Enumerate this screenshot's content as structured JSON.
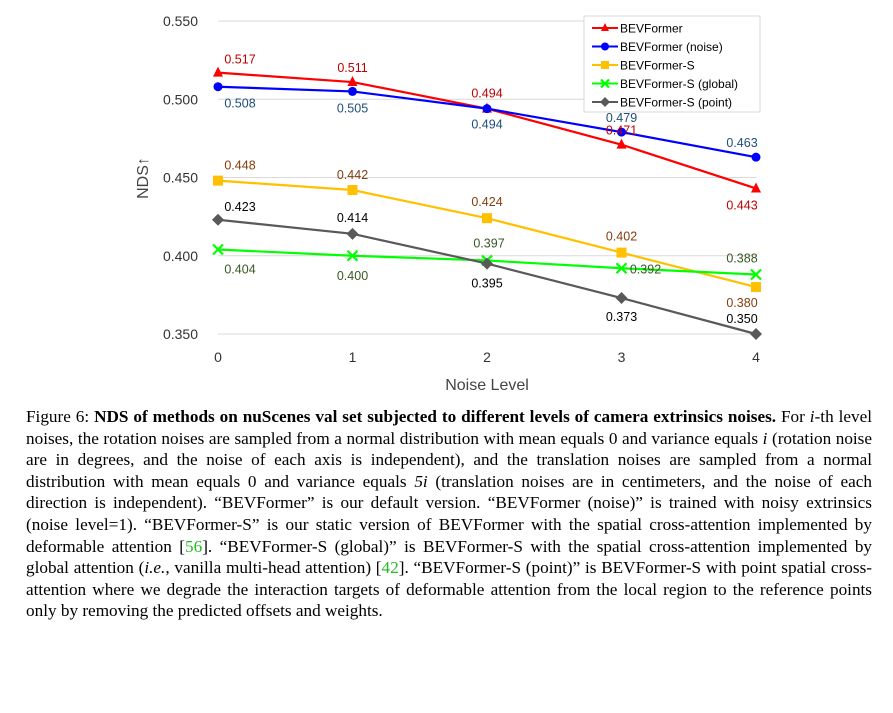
{
  "chart_data": {
    "type": "line",
    "x": [
      0,
      1,
      2,
      3,
      4
    ],
    "xlabel": "Noise Level",
    "ylabel": "NDS↑",
    "ylim": [
      0.35,
      0.55
    ],
    "yticks": [
      "0.350",
      "0.400",
      "0.450",
      "0.500",
      "0.550"
    ],
    "xticks": [
      "0",
      "1",
      "2",
      "3",
      "4"
    ],
    "grid": "horizontal",
    "legend_position": "top-right",
    "series": [
      {
        "name": "BEVFormer",
        "color": "#ff0000",
        "label_color": "#c00000",
        "marker": "triangle",
        "values": [
          0.517,
          0.511,
          0.494,
          0.471,
          0.443
        ],
        "labels": [
          "0.517",
          "0.511",
          "0.494",
          "0.471",
          "0.443"
        ]
      },
      {
        "name": "BEVFormer (noise)",
        "color": "#0000ff",
        "label_color": "#1f4e79",
        "marker": "circle",
        "values": [
          0.508,
          0.505,
          0.494,
          0.479,
          0.463
        ],
        "labels": [
          "0.508",
          "0.505",
          "0.494",
          "0.479",
          "0.463"
        ]
      },
      {
        "name": "BEVFormer-S",
        "color": "#ffc000",
        "label_color": "#843c0c",
        "marker": "square",
        "values": [
          0.448,
          0.442,
          0.424,
          0.402,
          0.38
        ],
        "labels": [
          "0.448",
          "0.442",
          "0.424",
          "0.402",
          "0.380"
        ]
      },
      {
        "name": "BEVFormer-S (global)",
        "color": "#00ff00",
        "label_color": "#385723",
        "marker": "x",
        "values": [
          0.404,
          0.4,
          0.397,
          0.392,
          0.388
        ],
        "labels": [
          "0.404",
          "0.400",
          "0.397",
          "0.392",
          "0.388"
        ]
      },
      {
        "name": "BEVFormer-S (point)",
        "color": "#595959",
        "label_color": "#000000",
        "marker": "diamond",
        "values": [
          0.423,
          0.414,
          0.395,
          0.373,
          0.35
        ],
        "labels": [
          "0.423",
          "0.414",
          "0.395",
          "0.373",
          "0.350"
        ]
      }
    ]
  },
  "caption": {
    "figure_label": "Figure 6:",
    "bold_title": "NDS of methods on nuScenes val set subjected to different levels of camera extrinsics noises.",
    "part1": "For ",
    "var_i": "i",
    "part2": "-th level noises, the rotation noises are sampled from a normal distribution with mean equals 0 and variance equals ",
    "var_i2": "i",
    "part3": " (rotation noise are in degrees, and the noise of each axis is independent), and the translation noises are sampled from a normal distribution with mean equals 0 and variance equals ",
    "var_5i": "5i",
    "part4": " (translation noises are in centimeters, and the noise of each direction is independent). “BEVFormer” is our default version. “BEVFormer (noise)” is trained with noisy extrinsics (noise level=1). “BEVFormer-S” is our static version of BEVFormer with the spatial cross-attention implemented by deformable attention [",
    "cite1": "56",
    "part5": "]. “BEVFormer-S (global)” is BEVFormer-S with the spatial cross-attention implemented by global attention (",
    "ie": "i.e.",
    "part6": ", vanilla multi-head attention) [",
    "cite2": "42",
    "part7": "]. “BEVFormer-S (point)” is BEVFormer-S with point spatial cross-attention where we degrade the interaction targets of deformable attention from the local region to the reference points only by removing the predicted offsets and weights."
  }
}
